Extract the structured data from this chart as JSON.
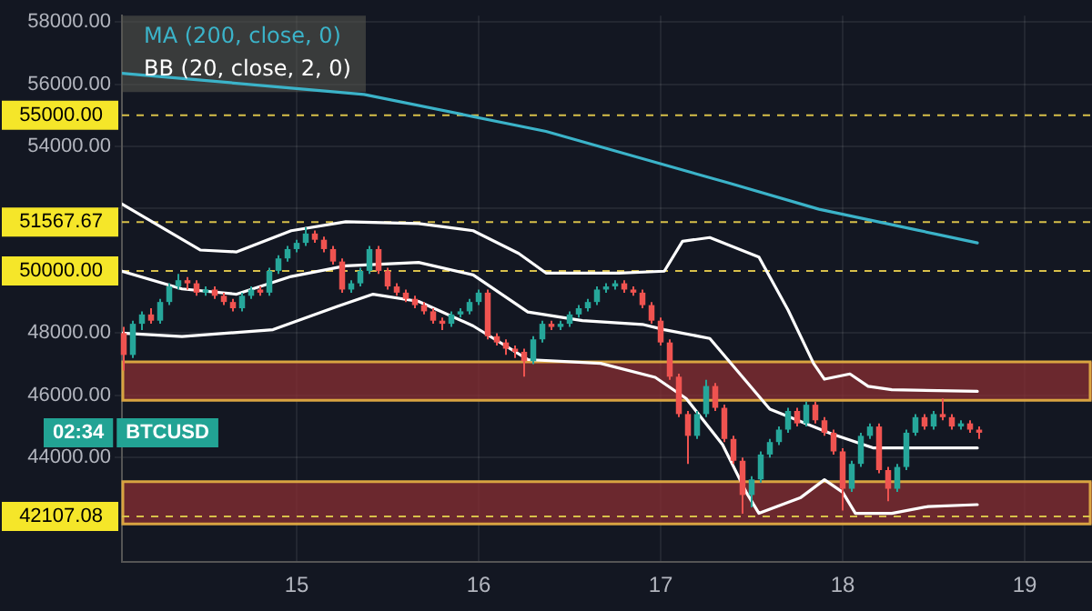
{
  "chart_data": {
    "type": "candlestick",
    "grid": true,
    "legend": "top left",
    "xlim": [
      14.04,
      19.37
    ],
    "xticks": [
      15,
      16,
      17,
      18,
      19
    ],
    "ylim": [
      40650,
      58200
    ],
    "yticks": [
      {
        "value": 44000,
        "label": "44000.00"
      },
      {
        "value": 46000,
        "label": "46000.00"
      },
      {
        "value": 48000,
        "label": "48000.00"
      },
      {
        "value": 52000,
        "label": null
      },
      {
        "value": 54000,
        "label": "54000.00"
      },
      {
        "value": 56000,
        "label": "56000.00"
      },
      {
        "value": 58000,
        "label": "58000.00"
      }
    ],
    "ref_lines": [
      {
        "axis": "y",
        "value": 55000,
        "label": "55000.00",
        "color": "#d8c04a",
        "line_style": "dashed"
      },
      {
        "axis": "y",
        "value": 51567.67,
        "label": "51567.67",
        "color": "#d8c04a",
        "line_style": "dashed"
      },
      {
        "axis": "y",
        "value": 50000,
        "label": "50000.00",
        "color": "#d8c04a",
        "line_style": "dashed"
      },
      {
        "axis": "y",
        "value": 42107.08,
        "label": "42107.08",
        "color": "#d8c04a",
        "line_style": "dashed"
      }
    ],
    "bands": [
      {
        "axis": "y",
        "from": 45840,
        "to": 47080,
        "color": "#8a2f33"
      },
      {
        "axis": "y",
        "from": 41870,
        "to": 43230,
        "color": "#8a2f33"
      }
    ],
    "annotations": [
      "02:34",
      "BTCUSD"
    ],
    "series": [
      {
        "type": "candlestick",
        "x": [
          14.05,
          14.1,
          14.15,
          14.2,
          14.25,
          14.3,
          14.35,
          14.4,
          14.45,
          14.5,
          14.55,
          14.6,
          14.65,
          14.7,
          14.75,
          14.8,
          14.85,
          14.9,
          14.95,
          15.0,
          15.05,
          15.1,
          15.15,
          15.2,
          15.25,
          15.3,
          15.35,
          15.4,
          15.45,
          15.5,
          15.55,
          15.6,
          15.65,
          15.7,
          15.75,
          15.8,
          15.85,
          15.9,
          15.95,
          16.0,
          16.05,
          16.1,
          16.15,
          16.2,
          16.25,
          16.3,
          16.35,
          16.4,
          16.45,
          16.5,
          16.55,
          16.6,
          16.65,
          16.7,
          16.75,
          16.8,
          16.85,
          16.9,
          16.95,
          17.0,
          17.05,
          17.1,
          17.15,
          17.2,
          17.25,
          17.3,
          17.35,
          17.4,
          17.45,
          17.5,
          17.55,
          17.6,
          17.65,
          17.7,
          17.75,
          17.8,
          17.85,
          17.9,
          17.95,
          18.0,
          18.05,
          18.1,
          18.15,
          18.2,
          18.25,
          18.3,
          18.35,
          18.4,
          18.45,
          18.5,
          18.55,
          18.6,
          18.65,
          18.7,
          18.75
        ],
        "ohlc": [
          [
            48000,
            48200,
            46800,
            47300
          ],
          [
            47300,
            48400,
            47200,
            48300
          ],
          [
            48300,
            48700,
            48100,
            48600
          ],
          [
            48600,
            48800,
            48300,
            48400
          ],
          [
            48400,
            49100,
            48300,
            49000
          ],
          [
            49000,
            49600,
            48900,
            49500
          ],
          [
            49500,
            49900,
            49400,
            49700
          ],
          [
            49700,
            49800,
            49400,
            49600
          ],
          [
            49600,
            49700,
            49200,
            49300
          ],
          [
            49300,
            49500,
            49200,
            49400
          ],
          [
            49400,
            49500,
            49100,
            49200
          ],
          [
            49200,
            49300,
            48900,
            49000
          ],
          [
            49000,
            49100,
            48700,
            48800
          ],
          [
            48800,
            49300,
            48700,
            49200
          ],
          [
            49200,
            49500,
            49100,
            49400
          ],
          [
            49400,
            49500,
            49200,
            49300
          ],
          [
            49300,
            50100,
            49200,
            50000
          ],
          [
            50000,
            50500,
            49900,
            50400
          ],
          [
            50400,
            50800,
            50300,
            50700
          ],
          [
            50700,
            51000,
            50600,
            50900
          ],
          [
            50900,
            51400,
            50800,
            51200
          ],
          [
            51200,
            51300,
            50900,
            51000
          ],
          [
            51000,
            51100,
            50600,
            50700
          ],
          [
            50700,
            50800,
            50200,
            50300
          ],
          [
            50300,
            50400,
            49300,
            49400
          ],
          [
            49400,
            49700,
            49300,
            49600
          ],
          [
            49600,
            50100,
            49500,
            50000
          ],
          [
            50000,
            50800,
            49900,
            50700
          ],
          [
            50700,
            50800,
            49900,
            50000
          ],
          [
            50000,
            50100,
            49400,
            49500
          ],
          [
            49500,
            49600,
            49200,
            49300
          ],
          [
            49300,
            49400,
            49000,
            49100
          ],
          [
            49100,
            49200,
            48800,
            48900
          ],
          [
            48900,
            49000,
            48600,
            48700
          ],
          [
            48700,
            48800,
            48300,
            48400
          ],
          [
            48400,
            48500,
            48100,
            48300
          ],
          [
            48300,
            48700,
            48200,
            48600
          ],
          [
            48600,
            48800,
            48500,
            48700
          ],
          [
            48700,
            49100,
            48600,
            49000
          ],
          [
            49000,
            49400,
            48900,
            49300
          ],
          [
            49300,
            49400,
            47800,
            47900
          ],
          [
            47900,
            48000,
            47600,
            47700
          ],
          [
            47700,
            47800,
            47300,
            47500
          ],
          [
            47500,
            47600,
            47200,
            47400
          ],
          [
            47400,
            47500,
            46600,
            47100
          ],
          [
            47100,
            47900,
            47000,
            47800
          ],
          [
            47800,
            48400,
            47700,
            48300
          ],
          [
            48300,
            48400,
            48100,
            48200
          ],
          [
            48200,
            48400,
            48100,
            48300
          ],
          [
            48300,
            48700,
            48200,
            48600
          ],
          [
            48600,
            48900,
            48500,
            48800
          ],
          [
            48800,
            49100,
            48700,
            49000
          ],
          [
            49000,
            49500,
            48900,
            49400
          ],
          [
            49400,
            49600,
            49300,
            49500
          ],
          [
            49500,
            49700,
            49400,
            49600
          ],
          [
            49600,
            49700,
            49300,
            49400
          ],
          [
            49400,
            49500,
            49200,
            49300
          ],
          [
            49300,
            49400,
            48800,
            48900
          ],
          [
            48900,
            49000,
            48300,
            48400
          ],
          [
            48400,
            48500,
            47600,
            47700
          ],
          [
            47700,
            47800,
            46500,
            46600
          ],
          [
            46600,
            46700,
            45300,
            45400
          ],
          [
            45400,
            45500,
            43800,
            44700
          ],
          [
            44700,
            45500,
            44600,
            45400
          ],
          [
            45400,
            46500,
            45300,
            46300
          ],
          [
            46300,
            46400,
            45500,
            45600
          ],
          [
            45600,
            45700,
            44500,
            44600
          ],
          [
            44600,
            44700,
            43800,
            43900
          ],
          [
            43900,
            44000,
            42200,
            42800
          ],
          [
            42800,
            43400,
            42400,
            43300
          ],
          [
            43300,
            44200,
            43200,
            44100
          ],
          [
            44100,
            44600,
            44000,
            44500
          ],
          [
            44500,
            45000,
            44400,
            44900
          ],
          [
            44900,
            45600,
            44800,
            45500
          ],
          [
            45500,
            45600,
            45000,
            45100
          ],
          [
            45100,
            45800,
            45000,
            45700
          ],
          [
            45700,
            45800,
            45100,
            45200
          ],
          [
            45200,
            45300,
            44700,
            44800
          ],
          [
            44800,
            44900,
            44100,
            44200
          ],
          [
            44200,
            44300,
            42300,
            43000
          ],
          [
            43000,
            43900,
            42900,
            43800
          ],
          [
            43800,
            44800,
            43700,
            44700
          ],
          [
            44700,
            45100,
            44600,
            45000
          ],
          [
            45000,
            45100,
            43500,
            43600
          ],
          [
            43600,
            43700,
            42600,
            43000
          ],
          [
            43000,
            43800,
            42900,
            43700
          ],
          [
            43700,
            44900,
            43600,
            44800
          ],
          [
            44800,
            45400,
            44700,
            45300
          ],
          [
            45300,
            45400,
            44900,
            45000
          ],
          [
            45000,
            45500,
            44900,
            45400
          ],
          [
            45400,
            45900,
            45200,
            45300
          ],
          [
            45300,
            45400,
            44900,
            45000
          ],
          [
            45000,
            45200,
            44900,
            45100
          ],
          [
            45100,
            45200,
            44800,
            44900
          ],
          [
            44900,
            45000,
            44600,
            44800
          ]
        ],
        "colors": [
          "#ef5350",
          "#26a69a",
          "#26a69a",
          "#ef5350",
          "#26a69a",
          "#26a69a",
          "#26a69a",
          "#ef5350",
          "#ef5350",
          "#26a69a",
          "#ef5350",
          "#ef5350",
          "#ef5350",
          "#26a69a",
          "#26a69a",
          "#ef5350",
          "#26a69a",
          "#26a69a",
          "#26a69a",
          "#26a69a",
          "#26a69a",
          "#ef5350",
          "#ef5350",
          "#ef5350",
          "#ef5350",
          "#26a69a",
          "#26a69a",
          "#26a69a",
          "#ef5350",
          "#ef5350",
          "#ef5350",
          "#ef5350",
          "#ef5350",
          "#ef5350",
          "#ef5350",
          "#ef5350",
          "#26a69a",
          "#26a69a",
          "#26a69a",
          "#26a69a",
          "#ef5350",
          "#ef5350",
          "#ef5350",
          "#ef5350",
          "#ef5350",
          "#26a69a",
          "#26a69a",
          "#ef5350",
          "#26a69a",
          "#26a69a",
          "#26a69a",
          "#26a69a",
          "#26a69a",
          "#26a69a",
          "#26a69a",
          "#ef5350",
          "#ef5350",
          "#ef5350",
          "#ef5350",
          "#ef5350",
          "#ef5350",
          "#ef5350",
          "#ef5350",
          "#26a69a",
          "#26a69a",
          "#ef5350",
          "#ef5350",
          "#ef5350",
          "#ef5350",
          "#26a69a",
          "#26a69a",
          "#26a69a",
          "#26a69a",
          "#26a69a",
          "#ef5350",
          "#26a69a",
          "#ef5350",
          "#ef5350",
          "#ef5350",
          "#ef5350",
          "#26a69a",
          "#26a69a",
          "#26a69a",
          "#ef5350",
          "#ef5350",
          "#26a69a",
          "#26a69a",
          "#26a69a",
          "#ef5350",
          "#26a69a",
          "#ef5350",
          "#ef5350",
          "#26a69a",
          "#ef5350",
          "#ef5350"
        ]
      },
      {
        "type": "line",
        "name": "MA (200, close, 0)",
        "color": "#3bb3c9",
        "x": [
          14.04,
          15.37,
          16.37,
          17.37,
          17.87,
          18.74
        ],
        "values": [
          56350,
          55670,
          54480,
          52830,
          51980,
          50900
        ]
      },
      {
        "type": "line",
        "name": "BB (20, close, 2, 0)",
        "color": "#ffffff",
        "x": [
          14.04,
          14.37,
          14.67,
          14.97,
          15.27,
          15.67,
          15.97,
          16.27,
          16.57,
          16.9,
          17.02,
          17.27,
          17.6,
          17.94,
          18.17,
          18.34,
          18.74
        ],
        "values": [
          49990,
          49420,
          49250,
          49820,
          50160,
          50270,
          49870,
          48680,
          48400,
          48280,
          48110,
          47830,
          45560,
          44760,
          44310,
          44310,
          44310
        ]
      },
      {
        "type": "line",
        "color": "#ffffff",
        "x": [
          14.04,
          14.47,
          14.67,
          14.97,
          15.27,
          15.67,
          15.97,
          16.22,
          16.37,
          16.77,
          17.02,
          17.12,
          17.27,
          17.54,
          17.7,
          17.84,
          17.9,
          18.04,
          18.14,
          18.27,
          18.74
        ],
        "values": [
          52150,
          50670,
          50610,
          51290,
          51580,
          51520,
          51290,
          50560,
          49930,
          49930,
          49990,
          50950,
          51070,
          50440,
          48740,
          47030,
          46520,
          46690,
          46290,
          46180,
          46130
        ]
      },
      {
        "type": "line",
        "color": "#ffffff",
        "x": [
          14.04,
          14.37,
          14.87,
          15.22,
          15.42,
          15.67,
          15.97,
          16.27,
          16.67,
          16.97,
          17.14,
          17.34,
          17.47,
          17.54,
          17.77,
          17.9,
          18.0,
          18.07,
          18.27,
          18.47,
          18.74
        ],
        "values": [
          48000,
          47890,
          48110,
          48850,
          49250,
          49020,
          48230,
          47150,
          47030,
          46580,
          45900,
          44420,
          42890,
          42210,
          42720,
          43290,
          42890,
          42210,
          42210,
          42430,
          42490
        ]
      }
    ]
  }
}
